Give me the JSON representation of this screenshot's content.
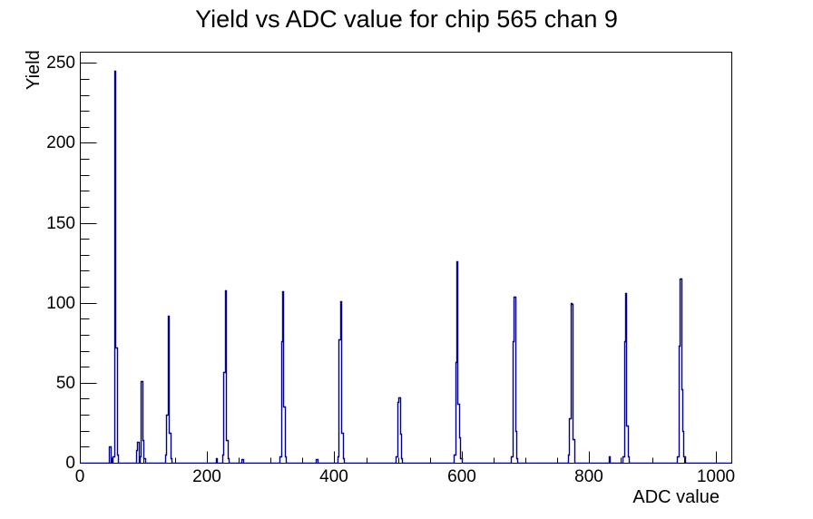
{
  "colors": {
    "histogram_line": "#00008B",
    "axis_line": "#000000",
    "background": "#ffffff",
    "text": "#000000"
  },
  "chart_data": {
    "type": "bar",
    "style": "root-histogram-outline",
    "title": "Yield vs ADC value for chip 565 chan 9",
    "xlabel": "ADC value",
    "ylabel": "Yield",
    "xlim": [
      0,
      1024
    ],
    "ylim": [
      0,
      257
    ],
    "grid": false,
    "legend": "none",
    "x_major_ticks": [
      0,
      200,
      400,
      600,
      800,
      1000
    ],
    "x_minor_step": 50,
    "y_major_ticks": [
      0,
      50,
      100,
      150,
      200,
      250
    ],
    "y_minor_step": 10,
    "bin_half_width": 1,
    "main_peaks": [
      {
        "adc": 55,
        "yield": 245
      },
      {
        "adc": 97,
        "yield": 51
      },
      {
        "adc": 139,
        "yield": 92
      },
      {
        "adc": 229,
        "yield": 108
      },
      {
        "adc": 319,
        "yield": 107
      },
      {
        "adc": 410,
        "yield": 101
      },
      {
        "adc": 502,
        "yield": 41
      },
      {
        "adc": 593,
        "yield": 126
      },
      {
        "adc": 683,
        "yield": 104
      },
      {
        "adc": 772,
        "yield": 100
      },
      {
        "adc": 858,
        "yield": 106
      },
      {
        "adc": 944,
        "yield": 115
      }
    ],
    "clusters": [
      [
        [
          47,
          10
        ]
      ],
      [
        [
          53,
          4
        ],
        [
          55,
          245
        ],
        [
          57,
          72
        ],
        [
          59,
          5
        ]
      ],
      [
        [
          89,
          8
        ],
        [
          91,
          13
        ]
      ],
      [
        [
          95,
          4
        ],
        [
          97,
          51
        ],
        [
          99,
          14
        ],
        [
          101,
          3
        ]
      ],
      [
        [
          135,
          5
        ],
        [
          137,
          30
        ],
        [
          139,
          92
        ],
        [
          141,
          19
        ],
        [
          143,
          3
        ]
      ],
      [
        [
          215,
          3
        ]
      ],
      [
        [
          225,
          5
        ],
        [
          227,
          57
        ],
        [
          229,
          108
        ],
        [
          231,
          14
        ],
        [
          233,
          3
        ]
      ],
      [
        [
          255,
          2
        ]
      ],
      [
        [
          315,
          4
        ],
        [
          317,
          76
        ],
        [
          319,
          107
        ],
        [
          321,
          35
        ],
        [
          323,
          4
        ]
      ],
      [
        [
          372,
          2
        ]
      ],
      [
        [
          406,
          4
        ],
        [
          408,
          77
        ],
        [
          410,
          101
        ],
        [
          412,
          19
        ],
        [
          414,
          3
        ]
      ],
      [
        [
          498,
          4
        ],
        [
          500,
          38
        ],
        [
          502,
          41
        ],
        [
          504,
          18
        ],
        [
          506,
          3
        ]
      ],
      [
        [
          589,
          5
        ],
        [
          591,
          63
        ],
        [
          593,
          126
        ],
        [
          595,
          37
        ],
        [
          597,
          16
        ],
        [
          599,
          3
        ]
      ],
      [
        [
          679,
          4
        ],
        [
          681,
          76
        ],
        [
          683,
          104
        ],
        [
          685,
          20
        ],
        [
          687,
          3
        ]
      ],
      [
        [
          768,
          5
        ],
        [
          770,
          28
        ],
        [
          772,
          100
        ],
        [
          774,
          99
        ],
        [
          776,
          15
        ]
      ],
      [
        [
          832,
          4
        ]
      ],
      [
        [
          854,
          4
        ],
        [
          856,
          76
        ],
        [
          858,
          106
        ],
        [
          860,
          23
        ],
        [
          862,
          4
        ]
      ],
      [
        [
          940,
          4
        ],
        [
          942,
          73
        ],
        [
          944,
          115
        ],
        [
          946,
          46
        ],
        [
          948,
          20
        ],
        [
          950,
          4
        ]
      ]
    ]
  }
}
